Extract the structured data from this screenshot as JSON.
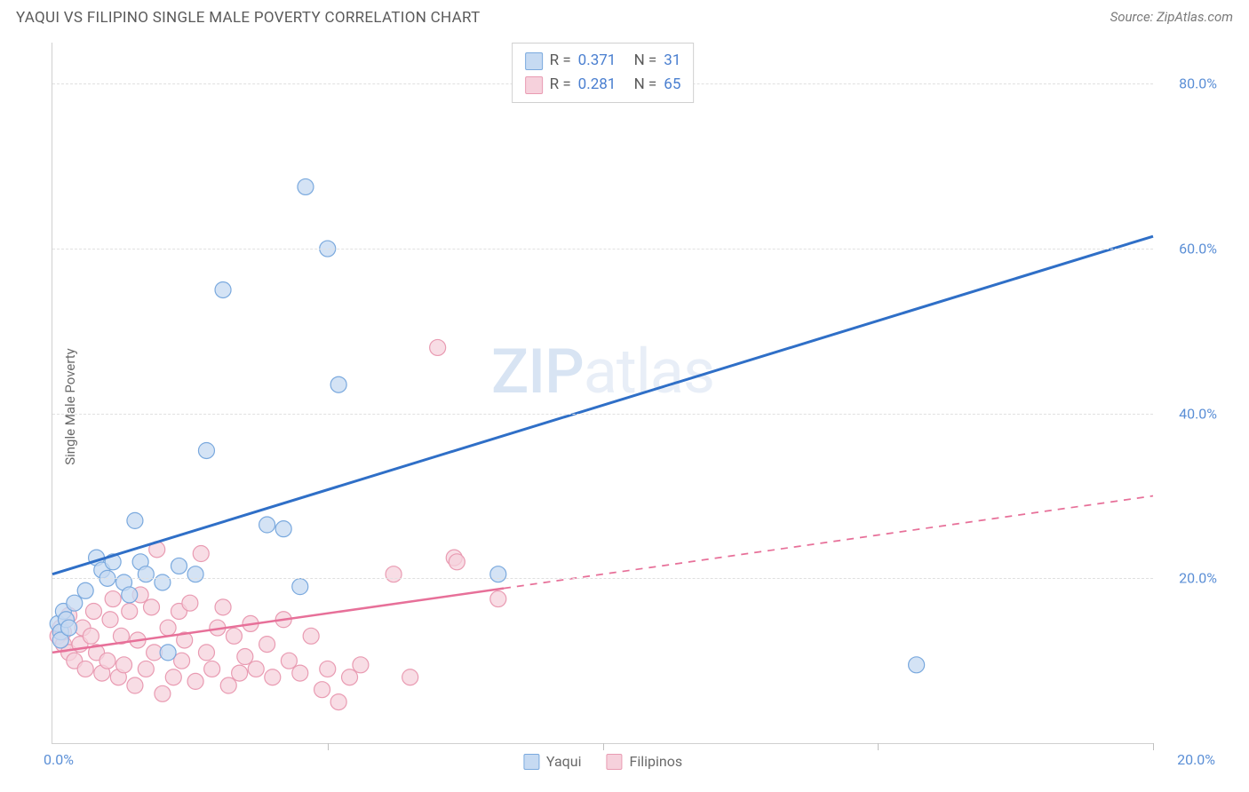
{
  "header": {
    "title": "YAQUI VS FILIPINO SINGLE MALE POVERTY CORRELATION CHART",
    "source_prefix": "Source: ",
    "source": "ZipAtlas.com"
  },
  "axes": {
    "ylabel": "Single Male Poverty",
    "xlim": [
      0,
      20
    ],
    "ylim": [
      0,
      85
    ],
    "yticks": [
      20,
      40,
      60,
      80
    ],
    "ytick_labels": [
      "20.0%",
      "40.0%",
      "60.0%",
      "80.0%"
    ],
    "xticks": [
      0,
      5,
      10,
      15,
      20
    ],
    "x_left_label": "0.0%",
    "x_right_label": "20.0%",
    "grid_color": "#e0e0e0",
    "axis_color": "#d0d0d0",
    "tick_label_color": "#5b8fd6"
  },
  "watermark": {
    "text_a": "ZIP",
    "text_b": "atlas"
  },
  "series": {
    "yaqui": {
      "label": "Yaqui",
      "color_fill": "#c6daf2",
      "color_stroke": "#7aa9de",
      "line_color": "#2f6fc7",
      "line_width": 3,
      "r": 0.371,
      "n": 31,
      "trend": {
        "x1": 0,
        "y1": 20.5,
        "x2": 20,
        "y2": 61.5,
        "solid_to_x": 20
      },
      "points": [
        [
          0.1,
          14.5
        ],
        [
          0.15,
          13.5
        ],
        [
          0.2,
          16
        ],
        [
          0.25,
          15
        ],
        [
          0.15,
          12.5
        ],
        [
          0.3,
          14
        ],
        [
          0.4,
          17
        ],
        [
          0.6,
          18.5
        ],
        [
          0.8,
          22.5
        ],
        [
          0.9,
          21
        ],
        [
          1.0,
          20
        ],
        [
          1.1,
          22
        ],
        [
          1.3,
          19.5
        ],
        [
          1.4,
          18
        ],
        [
          1.6,
          22
        ],
        [
          1.7,
          20.5
        ],
        [
          2.0,
          19.5
        ],
        [
          2.1,
          11
        ],
        [
          2.3,
          21.5
        ],
        [
          2.6,
          20.5
        ],
        [
          1.5,
          27
        ],
        [
          2.8,
          35.5
        ],
        [
          3.1,
          55
        ],
        [
          3.9,
          26.5
        ],
        [
          4.2,
          26
        ],
        [
          4.5,
          19
        ],
        [
          4.6,
          67.5
        ],
        [
          5.0,
          60
        ],
        [
          5.2,
          43.5
        ],
        [
          8.1,
          20.5
        ],
        [
          15.7,
          9.5
        ]
      ]
    },
    "filipinos": {
      "label": "Filipinos",
      "color_fill": "#f6d1dc",
      "color_stroke": "#e99bb2",
      "line_color": "#e77099",
      "line_width": 2.5,
      "r": 0.281,
      "n": 65,
      "trend": {
        "x1": 0,
        "y1": 11.0,
        "x2": 20,
        "y2": 30.0,
        "solid_to_x": 8.2
      },
      "points": [
        [
          0.1,
          13
        ],
        [
          0.15,
          14
        ],
        [
          0.2,
          12
        ],
        [
          0.25,
          15
        ],
        [
          0.2,
          13.5
        ],
        [
          0.3,
          11
        ],
        [
          0.3,
          15.5
        ],
        [
          0.4,
          10
        ],
        [
          0.5,
          12
        ],
        [
          0.55,
          14
        ],
        [
          0.6,
          9
        ],
        [
          0.7,
          13
        ],
        [
          0.75,
          16
        ],
        [
          0.8,
          11
        ],
        [
          0.9,
          8.5
        ],
        [
          1.0,
          10
        ],
        [
          1.05,
          15
        ],
        [
          1.1,
          17.5
        ],
        [
          1.2,
          8
        ],
        [
          1.25,
          13
        ],
        [
          1.3,
          9.5
        ],
        [
          1.4,
          16
        ],
        [
          1.5,
          7
        ],
        [
          1.55,
          12.5
        ],
        [
          1.6,
          18
        ],
        [
          1.7,
          9
        ],
        [
          1.8,
          16.5
        ],
        [
          1.85,
          11
        ],
        [
          1.9,
          23.5
        ],
        [
          2.0,
          6
        ],
        [
          2.1,
          14
        ],
        [
          2.2,
          8
        ],
        [
          2.3,
          16
        ],
        [
          2.35,
          10
        ],
        [
          2.4,
          12.5
        ],
        [
          2.5,
          17
        ],
        [
          2.6,
          7.5
        ],
        [
          2.7,
          23
        ],
        [
          2.8,
          11
        ],
        [
          2.9,
          9
        ],
        [
          3.0,
          14
        ],
        [
          3.1,
          16.5
        ],
        [
          3.2,
          7
        ],
        [
          3.3,
          13
        ],
        [
          3.4,
          8.5
        ],
        [
          3.5,
          10.5
        ],
        [
          3.6,
          14.5
        ],
        [
          3.7,
          9
        ],
        [
          3.9,
          12
        ],
        [
          4.0,
          8
        ],
        [
          4.2,
          15
        ],
        [
          4.3,
          10
        ],
        [
          4.5,
          8.5
        ],
        [
          4.7,
          13
        ],
        [
          4.9,
          6.5
        ],
        [
          5.0,
          9
        ],
        [
          5.2,
          5
        ],
        [
          5.4,
          8
        ],
        [
          5.6,
          9.5
        ],
        [
          6.2,
          20.5
        ],
        [
          6.5,
          8
        ],
        [
          7.0,
          48
        ],
        [
          7.3,
          22.5
        ],
        [
          7.35,
          22
        ],
        [
          8.1,
          17.5
        ]
      ]
    }
  },
  "legend_top": {
    "rows": [
      {
        "swatch_fill": "#c6daf2",
        "swatch_stroke": "#7aa9de",
        "r": "0.371",
        "n": "31"
      },
      {
        "swatch_fill": "#f6d1dc",
        "swatch_stroke": "#e99bb2",
        "r": "0.281",
        "n": "65"
      }
    ],
    "r_label": "R =",
    "n_label": "N ="
  },
  "legend_bottom": {
    "items": [
      {
        "swatch_fill": "#c6daf2",
        "swatch_stroke": "#7aa9de",
        "label": "Yaqui"
      },
      {
        "swatch_fill": "#f6d1dc",
        "swatch_stroke": "#e99bb2",
        "label": "Filipinos"
      }
    ]
  },
  "style": {
    "marker_radius": 9,
    "marker_stroke_width": 1.2,
    "background": "#ffffff"
  }
}
